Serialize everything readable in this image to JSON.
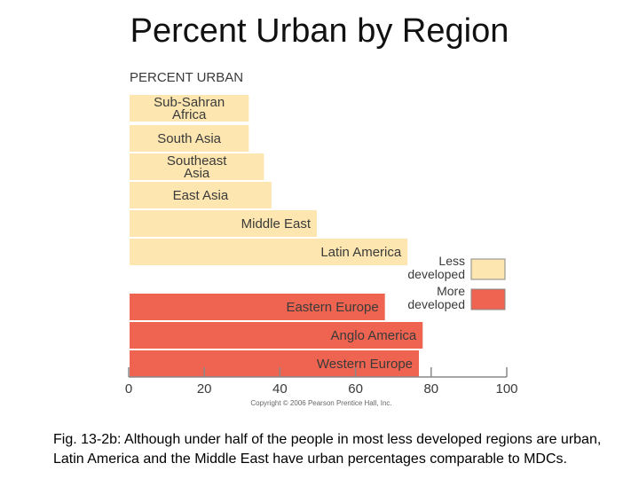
{
  "slide": {
    "title": "Percent Urban by Region",
    "caption": "Fig. 13-2b: Although under half of the people in most less developed regions are urban, Latin America and the Middle East have urban percentages comparable to MDCs."
  },
  "chart_data": {
    "type": "bar",
    "orientation": "horizontal",
    "title": "PERCENT URBAN",
    "categories": [
      [
        "Sub-Sahran",
        "Africa"
      ],
      [
        "South Asia"
      ],
      [
        "Southeast",
        "Asia"
      ],
      [
        "East Asia"
      ],
      [
        "Middle East"
      ],
      [
        "Latin America"
      ],
      [
        "Eastern Europe"
      ],
      [
        "Anglo America"
      ],
      [
        "Western Europe"
      ]
    ],
    "group": [
      "less",
      "less",
      "less",
      "less",
      "less",
      "less",
      "more",
      "more",
      "more"
    ],
    "values": [
      32,
      32,
      36,
      38,
      50,
      74,
      68,
      78,
      77
    ],
    "xlim": [
      0,
      100
    ],
    "xticks": [
      0,
      20,
      40,
      60,
      80,
      100
    ],
    "legend": {
      "placement": "right",
      "items": [
        {
          "key": "less",
          "label": [
            "Less",
            "developed"
          ],
          "color": "#fde6b0"
        },
        {
          "key": "more",
          "label": [
            "More",
            "developed"
          ],
          "color": "#ef6450"
        }
      ]
    },
    "colors": {
      "less": "#fde6b0",
      "more": "#ef6450",
      "border": "#ffffff",
      "text": "#3a3a3a",
      "axis": "#888888"
    },
    "copyright": "Copyright © 2006 Pearson Prentice Hall, Inc."
  }
}
